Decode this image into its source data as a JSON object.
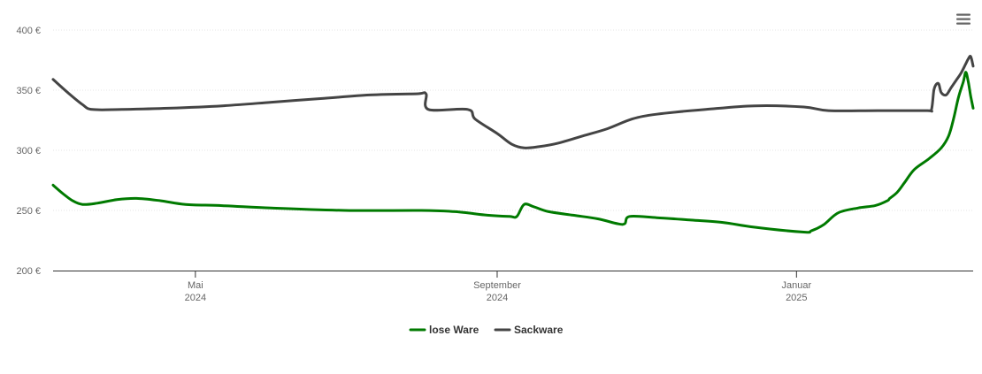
{
  "menu_icon": "hamburger-menu-icon",
  "chart_data": {
    "type": "line",
    "title": "",
    "xlabel": "",
    "ylabel": "",
    "ylim": [
      200,
      400
    ],
    "xlim": [
      "2024-03-04",
      "2025-03-14"
    ],
    "grid": true,
    "legend_position": "bottom-center",
    "yticks": [
      {
        "value": 200,
        "label": "200 €"
      },
      {
        "value": 250,
        "label": "250 €"
      },
      {
        "value": 300,
        "label": "300 €"
      },
      {
        "value": 350,
        "label": "350 €"
      },
      {
        "value": 400,
        "label": "400 €"
      }
    ],
    "xticks": [
      {
        "date": "2024-05-01",
        "month": "Mai",
        "year": "2024"
      },
      {
        "date": "2024-09-01",
        "month": "September",
        "year": "2024"
      },
      {
        "date": "2025-01-01",
        "month": "Januar",
        "year": "2025"
      }
    ],
    "series": [
      {
        "name": "lose Ware",
        "color": "#007a00",
        "points": [
          [
            "2024-03-04",
            271
          ],
          [
            "2024-03-08",
            264
          ],
          [
            "2024-03-12",
            258
          ],
          [
            "2024-03-16",
            255
          ],
          [
            "2024-03-22",
            256
          ],
          [
            "2024-03-30",
            259
          ],
          [
            "2024-04-07",
            260
          ],
          [
            "2024-04-17",
            258
          ],
          [
            "2024-04-27",
            255
          ],
          [
            "2024-05-12",
            254
          ],
          [
            "2024-06-01",
            252
          ],
          [
            "2024-07-01",
            250
          ],
          [
            "2024-08-01",
            250
          ],
          [
            "2024-08-15",
            249
          ],
          [
            "2024-08-28",
            246
          ],
          [
            "2024-09-06",
            245
          ],
          [
            "2024-09-09",
            245
          ],
          [
            "2024-09-12",
            255
          ],
          [
            "2024-09-16",
            253
          ],
          [
            "2024-09-22",
            249
          ],
          [
            "2024-10-02",
            246
          ],
          [
            "2024-10-12",
            243
          ],
          [
            "2024-10-20",
            239
          ],
          [
            "2024-10-23",
            239
          ],
          [
            "2024-10-25",
            245
          ],
          [
            "2024-11-05",
            244
          ],
          [
            "2024-11-19",
            242
          ],
          [
            "2024-12-02",
            240
          ],
          [
            "2024-12-15",
            236
          ],
          [
            "2025-01-04",
            232
          ],
          [
            "2025-01-07",
            233
          ],
          [
            "2025-01-12",
            238
          ],
          [
            "2025-01-18",
            248
          ],
          [
            "2025-01-26",
            252
          ],
          [
            "2025-02-02",
            254
          ],
          [
            "2025-02-07",
            258
          ],
          [
            "2025-02-08",
            260
          ],
          [
            "2025-02-11",
            265
          ],
          [
            "2025-02-14",
            273
          ],
          [
            "2025-02-18",
            284
          ],
          [
            "2025-02-24",
            293
          ],
          [
            "2025-03-01",
            302
          ],
          [
            "2025-03-04",
            312
          ],
          [
            "2025-03-06",
            326
          ],
          [
            "2025-03-08",
            344
          ],
          [
            "2025-03-10",
            357
          ],
          [
            "2025-03-11",
            365
          ],
          [
            "2025-03-12",
            357
          ],
          [
            "2025-03-13",
            345
          ],
          [
            "2025-03-14",
            335
          ]
        ]
      },
      {
        "name": "Sackware",
        "color": "#444444",
        "points": [
          [
            "2024-03-04",
            359
          ],
          [
            "2024-03-10",
            348
          ],
          [
            "2024-03-16",
            338
          ],
          [
            "2024-03-20",
            334
          ],
          [
            "2024-04-01",
            334
          ],
          [
            "2024-04-20",
            335
          ],
          [
            "2024-05-12",
            337
          ],
          [
            "2024-06-01",
            340
          ],
          [
            "2024-06-21",
            343
          ],
          [
            "2024-07-11",
            346
          ],
          [
            "2024-07-30",
            347
          ],
          [
            "2024-08-03",
            347
          ],
          [
            "2024-08-04",
            334
          ],
          [
            "2024-08-20",
            334
          ],
          [
            "2024-08-23",
            326
          ],
          [
            "2024-09-01",
            314
          ],
          [
            "2024-09-07",
            305
          ],
          [
            "2024-09-12",
            302
          ],
          [
            "2024-09-18",
            303
          ],
          [
            "2024-09-26",
            306
          ],
          [
            "2024-10-06",
            312
          ],
          [
            "2024-10-16",
            318
          ],
          [
            "2024-10-26",
            326
          ],
          [
            "2024-11-05",
            330
          ],
          [
            "2024-11-25",
            334
          ],
          [
            "2024-12-15",
            337
          ],
          [
            "2025-01-04",
            336
          ],
          [
            "2025-01-14",
            333
          ],
          [
            "2025-02-03",
            333
          ],
          [
            "2025-02-23",
            333
          ],
          [
            "2025-02-25",
            334
          ],
          [
            "2025-02-26",
            350
          ],
          [
            "2025-02-27",
            355
          ],
          [
            "2025-02-28",
            355
          ],
          [
            "2025-03-01",
            348
          ],
          [
            "2025-03-03",
            346
          ],
          [
            "2025-03-05",
            352
          ],
          [
            "2025-03-07",
            358
          ],
          [
            "2025-03-09",
            364
          ],
          [
            "2025-03-11",
            372
          ],
          [
            "2025-03-12",
            376
          ],
          [
            "2025-03-13",
            378
          ],
          [
            "2025-03-14",
            370
          ]
        ]
      }
    ]
  }
}
